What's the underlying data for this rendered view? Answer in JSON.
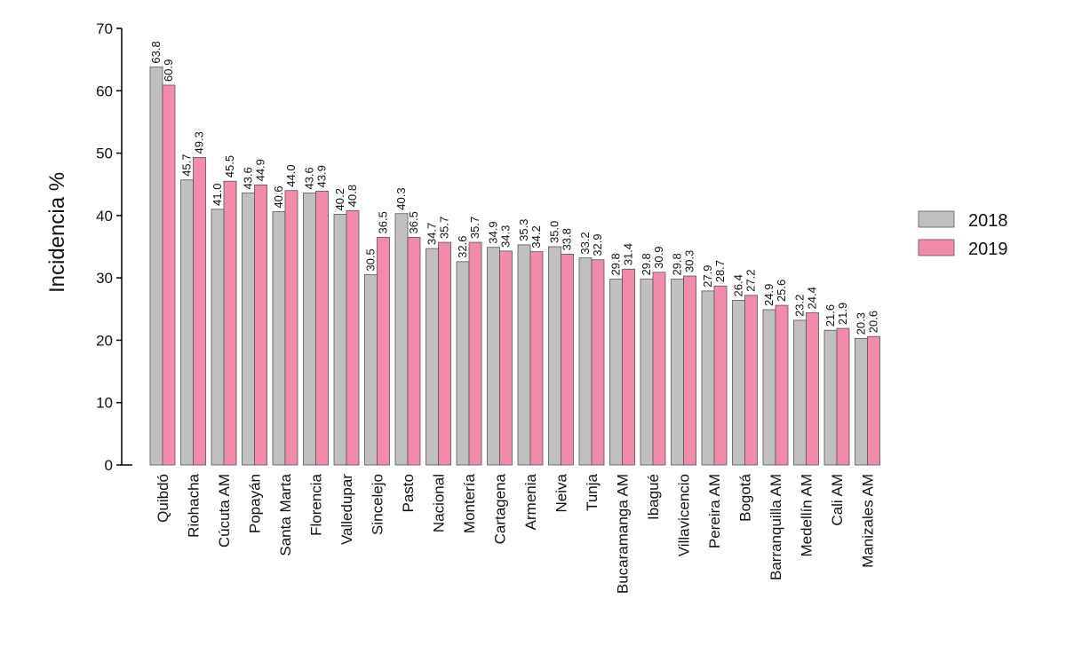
{
  "chart_data": {
    "type": "bar",
    "ylabel": "Incidencia %",
    "ylim": [
      0,
      70
    ],
    "yticks": [
      0,
      10,
      20,
      30,
      40,
      50,
      60,
      70
    ],
    "grid": false,
    "legend_position": "right",
    "categories": [
      "Quibdó",
      "Riohacha",
      "Cúcuta AM",
      "Popayán",
      "Santa Marta",
      "Florencia",
      "Valledupar",
      "Sincelejo",
      "Pasto",
      "Nacional",
      "Montería",
      "Cartagena",
      "Armenia",
      "Neiva",
      "Tunja",
      "Bucaramanga AM",
      "Ibagué",
      "Villavicencio",
      "Pereira AM",
      "Bogotá",
      "Barranquilla AM",
      "Medellín AM",
      "Cali AM",
      "Manizales AM"
    ],
    "series": [
      {
        "name": "2018",
        "color": "#c0c0c0",
        "values": [
          63.8,
          45.7,
          41.0,
          43.6,
          40.6,
          43.6,
          40.2,
          30.5,
          40.3,
          34.7,
          32.6,
          34.9,
          35.3,
          35.0,
          33.2,
          29.8,
          29.8,
          29.8,
          27.9,
          26.4,
          24.9,
          23.2,
          21.6,
          20.3
        ],
        "labels": [
          "63.8",
          "45.7",
          "41.0",
          "43.6",
          "40.6",
          "43.6",
          "40.2",
          "30.5",
          "40.3",
          "34.7",
          "32.6",
          "34.9",
          "35.3",
          "35.0",
          "33.2",
          "29.8",
          "29.8",
          "29.8",
          "27.9",
          "26.4",
          "24.9",
          "23.2",
          "21.6",
          "20.3"
        ]
      },
      {
        "name": "2019",
        "color": "#f28aaa",
        "values": [
          60.9,
          49.3,
          45.5,
          44.9,
          44.0,
          43.9,
          40.8,
          36.5,
          36.5,
          35.7,
          35.7,
          34.3,
          34.2,
          33.8,
          32.9,
          31.4,
          30.9,
          30.3,
          28.7,
          27.2,
          25.6,
          24.4,
          21.9,
          20.6
        ],
        "labels": [
          "60.9",
          "49.3",
          "45.5",
          "44.9",
          "44.0",
          "43.9",
          "40.8",
          "36.5",
          "36.5",
          "35.7",
          "35.7",
          "34.3",
          "34.2",
          "33.8",
          "32.9",
          "31.4",
          "30.9",
          "30.3",
          "28.7",
          "27.2",
          "25.6",
          "24.4",
          "21.9",
          "20.6"
        ]
      }
    ]
  }
}
